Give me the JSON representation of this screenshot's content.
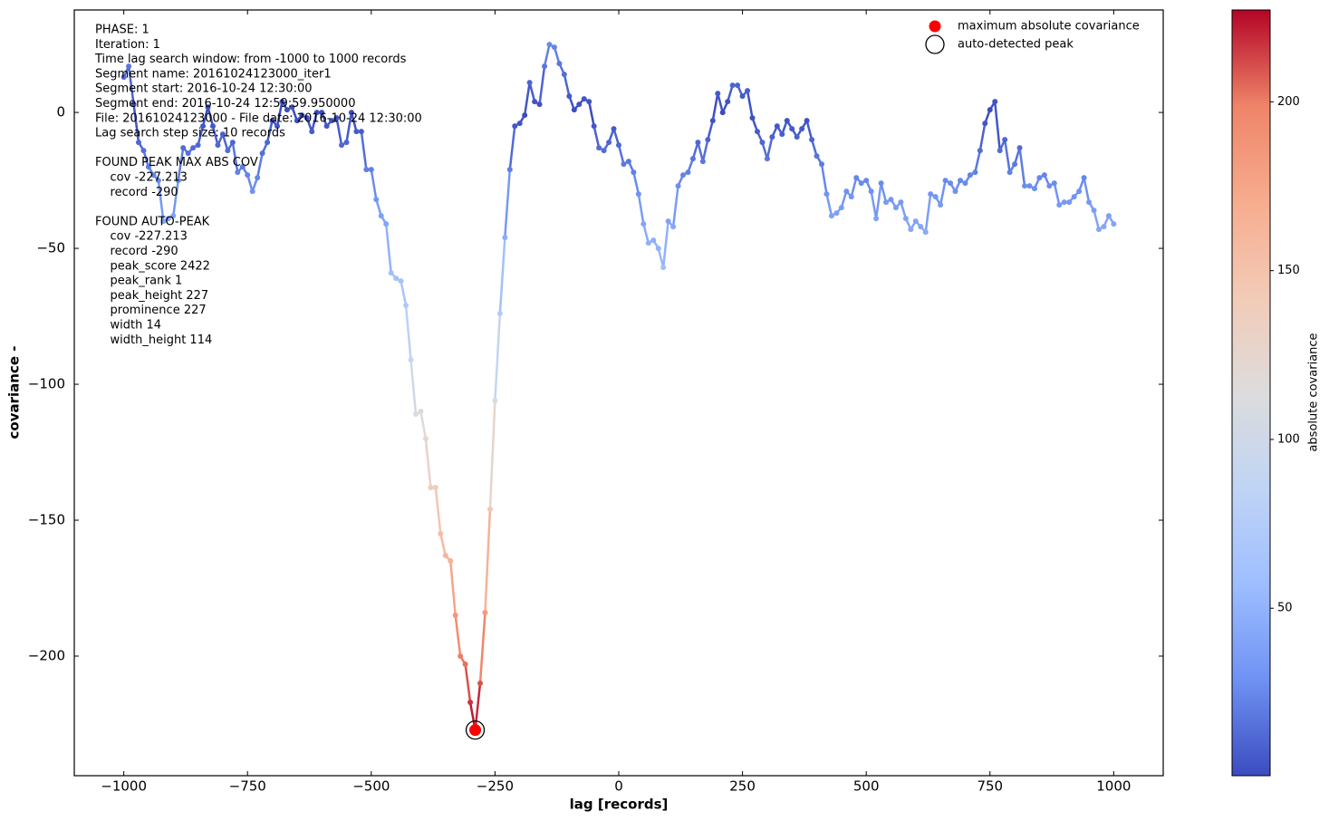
{
  "chart_data": {
    "type": "line",
    "xlabel": "lag [records]",
    "ylabel": "covariance  -",
    "xlim": [
      -1100,
      1100
    ],
    "ylim": [
      -244,
      37.7
    ],
    "xticks": [
      {
        "value": -1000,
        "label": "−1000"
      },
      {
        "value": -750,
        "label": "−750"
      },
      {
        "value": -500,
        "label": "−500"
      },
      {
        "value": -250,
        "label": "−250"
      },
      0,
      250,
      500,
      750,
      1000
    ],
    "yticks": [
      0,
      {
        "value": -50,
        "label": "−50"
      },
      {
        "value": -100,
        "label": "−100"
      },
      {
        "value": -150,
        "label": "−150"
      },
      {
        "value": -200,
        "label": "−200"
      }
    ],
    "colormap": "coolwarm",
    "colorbar": {
      "label": "absolute covariance",
      "clim": [
        0.4,
        227.213
      ],
      "ticks": [
        50,
        100,
        150,
        200
      ]
    },
    "x": [
      -1000,
      -990,
      -980,
      -970,
      -960,
      -950,
      -940,
      -930,
      -920,
      -910,
      -900,
      -890,
      -880,
      -870,
      -860,
      -850,
      -840,
      -830,
      -820,
      -810,
      -800,
      -790,
      -780,
      -770,
      -760,
      -750,
      -740,
      -730,
      -720,
      -710,
      -700,
      -690,
      -680,
      -670,
      -660,
      -650,
      -640,
      -630,
      -620,
      -610,
      -600,
      -590,
      -580,
      -570,
      -560,
      -550,
      -540,
      -530,
      -520,
      -510,
      -500,
      -490,
      -480,
      -470,
      -460,
      -450,
      -440,
      -430,
      -420,
      -410,
      -400,
      -390,
      -380,
      -370,
      -360,
      -350,
      -340,
      -330,
      -320,
      -310,
      -300,
      -290,
      -280,
      -270,
      -260,
      -250,
      -240,
      -230,
      -220,
      -210,
      -200,
      -190,
      -180,
      -170,
      -160,
      -150,
      -140,
      -130,
      -120,
      -110,
      -100,
      -90,
      -80,
      -70,
      -60,
      -50,
      -40,
      -30,
      -20,
      -10,
      0,
      10,
      20,
      30,
      40,
      50,
      60,
      70,
      80,
      90,
      100,
      110,
      120,
      130,
      140,
      150,
      160,
      170,
      180,
      190,
      200,
      210,
      220,
      230,
      240,
      250,
      260,
      270,
      280,
      290,
      300,
      310,
      320,
      330,
      340,
      350,
      360,
      370,
      380,
      390,
      400,
      410,
      420,
      430,
      440,
      450,
      460,
      470,
      480,
      490,
      500,
      510,
      520,
      530,
      540,
      550,
      560,
      570,
      580,
      590,
      600,
      610,
      620,
      630,
      640,
      650,
      660,
      670,
      680,
      690,
      700,
      710,
      720,
      730,
      740,
      750,
      760,
      770,
      780,
      790,
      800,
      810,
      820,
      830,
      840,
      850,
      860,
      870,
      880,
      890,
      900,
      910,
      920,
      930,
      940,
      950,
      960,
      970,
      980,
      990,
      1000
    ],
    "values": [
      13,
      17,
      3,
      -11,
      -14,
      -20,
      -23,
      -25,
      -40,
      -39,
      -38,
      -25,
      -13,
      -15,
      -13,
      -12,
      -5,
      2,
      -5,
      -12,
      -8,
      -14,
      -11,
      -22,
      -20,
      -23,
      -29,
      -24,
      -15,
      -11,
      -3,
      -5,
      4,
      1,
      2,
      -3,
      -1,
      -2,
      -7,
      0,
      0,
      -5,
      -3,
      -2,
      -12,
      -11,
      0,
      -7,
      -7,
      -21,
      -21,
      -32,
      -38,
      -41,
      -59,
      -61,
      -62,
      -71,
      -91,
      -111,
      -110,
      -120,
      -138,
      -138,
      -155,
      -163,
      -165,
      -185,
      -200,
      -203,
      -217,
      -227.213,
      -210,
      -184,
      -146,
      -106,
      -74,
      -46,
      -21,
      -5,
      -4,
      -1,
      11,
      4,
      3,
      17,
      25,
      24,
      18,
      14,
      6,
      1,
      3,
      5,
      4,
      -5,
      -13,
      -14,
      -11,
      -6,
      -12,
      -19,
      -18,
      -22,
      -30,
      -41,
      -48,
      -47,
      -50,
      -57,
      -40,
      -42,
      -27,
      -23,
      -22,
      -17,
      -11,
      -18,
      -10,
      -3,
      7,
      0,
      4,
      10,
      10,
      6,
      8,
      -2,
      -7,
      -11,
      -17,
      -9,
      -5,
      -8,
      -3,
      -6,
      -9,
      -6,
      -3,
      -10,
      -16,
      -19,
      -30,
      -38,
      -37,
      -35,
      -29,
      -31,
      -24,
      -26,
      -25,
      -29,
      -39,
      -26,
      -33,
      -32,
      -35,
      -33,
      -39,
      -43,
      -40,
      -42,
      -44,
      -30,
      -31,
      -34,
      -25,
      -26,
      -29,
      -25,
      -26,
      -23,
      -22,
      -14,
      -4,
      1,
      4,
      -14,
      -10,
      -22,
      -19,
      -13,
      -27,
      -27,
      -28,
      -24,
      -23,
      -27,
      -26,
      -34,
      -33,
      -33,
      -31,
      -29,
      -24,
      -33,
      -36,
      -43,
      -42,
      -38,
      -41
    ],
    "markers": [
      {
        "name": "maximum absolute covariance",
        "x": -290,
        "y": -227.213,
        "color": "#ff0000",
        "style": "filled"
      },
      {
        "name": "auto-detected peak",
        "x": -290,
        "y": -227.213,
        "color": "#000000",
        "style": "open"
      }
    ],
    "annotation": [
      [
        "PHASE: 1",
        "Iteration: 1",
        "Time lag search window: from -1000 to 1000 records",
        "Segment name: 20161024123000_iter1",
        "Segment start: 2016-10-24 12:30:00",
        "Segment end: 2016-10-24 12:59:59.950000",
        "File: 20161024123000 - File date: 2016-10-24 12:30:00",
        "Lag search step size: 10 records"
      ],
      [
        "FOUND PEAK MAX ABS COV",
        "    cov -227.213",
        "    record -290"
      ],
      [
        "FOUND AUTO-PEAK",
        "    cov -227.213",
        "    record -290",
        "    peak_score 2422",
        "    peak_rank 1",
        "    peak_height 227",
        "    prominence 227",
        "    width 14",
        "    width_height 114"
      ]
    ]
  }
}
